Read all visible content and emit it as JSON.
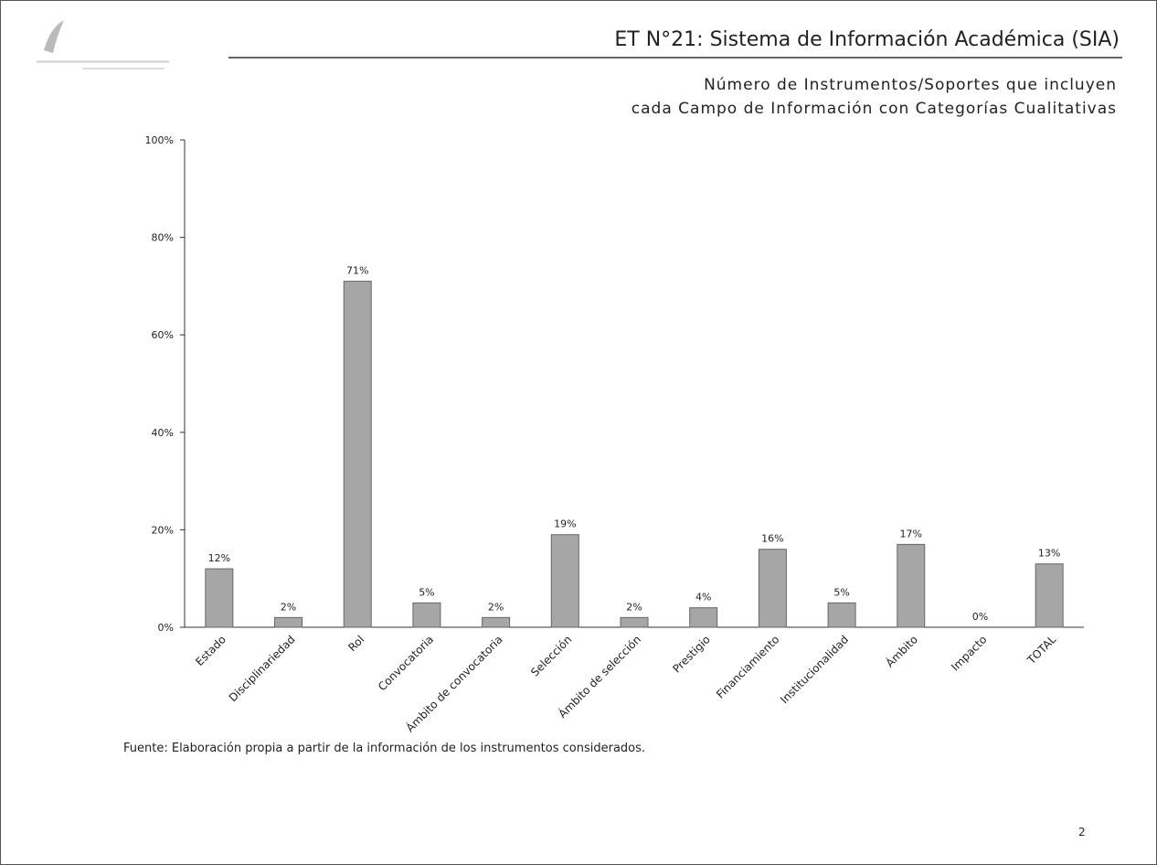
{
  "title": "ET N°21: Sistema de Información Académica (SIA)",
  "subtitle": [
    "Número de Instrumentos/Soportes que incluyen",
    "cada Campo de Información con Categorías Cualitativas"
  ],
  "chart_data": {
    "type": "bar",
    "categories": [
      "Estado",
      "Disciplinariedad",
      "Rol",
      "Convocatoria",
      "Ámbito de convocatoria",
      "Selección",
      "Ámbito de selección",
      "Prestigio",
      "Financiamiento",
      "Institucionalidad",
      "Ámbito",
      "Impacto",
      "TOTAL"
    ],
    "values": [
      12,
      2,
      71,
      5,
      2,
      19,
      2,
      4,
      16,
      5,
      17,
      0,
      13
    ],
    "value_labels": [
      "12%",
      "2%",
      "71%",
      "5%",
      "2%",
      "19%",
      "2%",
      "4%",
      "16%",
      "5%",
      "17%",
      "0%",
      "13%"
    ],
    "color": "#a6a6a6",
    "ylim": [
      0,
      100
    ],
    "yticks": [
      {
        "value": 0,
        "label": "0%"
      },
      {
        "value": 20,
        "label": "20%"
      },
      {
        "value": 40,
        "label": "40%"
      },
      {
        "value": 60,
        "label": "60%"
      },
      {
        "value": 80,
        "label": "80%"
      },
      {
        "value": 100,
        "label": "100%"
      }
    ]
  },
  "source": "Fuente: Elaboración propia a partir de la información de los instrumentos considerados.",
  "page_number": "2"
}
